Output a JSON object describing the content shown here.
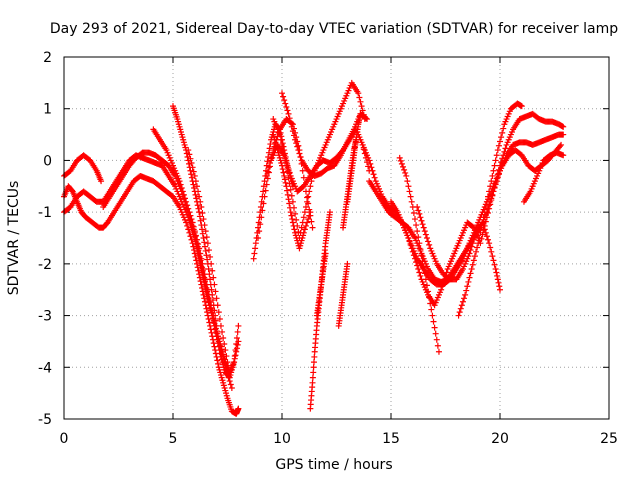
{
  "chart_data": {
    "type": "scatter",
    "title": "Day 293 of 2021, Sidereal Day-to-day VTEC variation (SDTVAR) for receiver lamp",
    "xlabel": "GPS time / hours",
    "ylabel": "SDTVAR / TECUs",
    "xlim": [
      0,
      25
    ],
    "ylim": [
      -5,
      2
    ],
    "xticks": [
      "0",
      "5",
      "10",
      "15",
      "20",
      "25"
    ],
    "yticks": [
      "-5",
      "-4",
      "-3",
      "-2",
      "-1",
      "0",
      "1",
      "2"
    ],
    "grid": true,
    "marker": "+",
    "color": "#ff0000",
    "series": [
      {
        "x": [
          0.0,
          0.3,
          0.6,
          0.9,
          1.2,
          1.5,
          1.7
        ],
        "y": [
          -0.3,
          -0.2,
          0.0,
          0.1,
          0.0,
          -0.2,
          -0.4
        ]
      },
      {
        "x": [
          0.0,
          0.2,
          0.4,
          0.6,
          0.8,
          1.0,
          1.3,
          1.6,
          1.8,
          2.0,
          2.3,
          2.6,
          2.9,
          3.2,
          3.5,
          3.8,
          4.1,
          4.4,
          4.7,
          5.0,
          5.3,
          5.6,
          5.9,
          6.1,
          6.3,
          6.5,
          6.7,
          6.9,
          7.1,
          7.3,
          7.5,
          7.7,
          7.9,
          8.0
        ],
        "y": [
          -0.7,
          -0.5,
          -0.6,
          -0.8,
          -1.0,
          -1.1,
          -1.2,
          -1.3,
          -1.3,
          -1.2,
          -1.0,
          -0.8,
          -0.6,
          -0.4,
          -0.3,
          -0.35,
          -0.4,
          -0.5,
          -0.6,
          -0.7,
          -0.9,
          -1.2,
          -1.6,
          -2.0,
          -2.4,
          -2.8,
          -3.2,
          -3.6,
          -4.0,
          -4.3,
          -4.6,
          -4.85,
          -4.9,
          -4.8
        ]
      },
      {
        "x": [
          0.0,
          0.3,
          0.6,
          0.9,
          1.2,
          1.5,
          1.8,
          2.1,
          2.4,
          2.7,
          3.0,
          3.3,
          3.6,
          3.9,
          4.2,
          4.5,
          4.8,
          5.1,
          5.4,
          5.7,
          6.0,
          6.2,
          6.4,
          6.6,
          6.8,
          7.0,
          7.2,
          7.4,
          7.6,
          7.8,
          8.0
        ],
        "y": [
          -1.0,
          -0.9,
          -0.7,
          -0.6,
          -0.7,
          -0.8,
          -0.8,
          -0.6,
          -0.4,
          -0.2,
          0.0,
          0.1,
          0.05,
          0.0,
          -0.05,
          -0.1,
          -0.3,
          -0.5,
          -0.8,
          -1.1,
          -1.5,
          -1.9,
          -2.3,
          -2.7,
          -3.0,
          -3.3,
          -3.6,
          -3.9,
          -4.1,
          -3.9,
          -3.5
        ]
      },
      {
        "x": [
          1.8,
          2.1,
          2.4,
          2.7,
          3.0,
          3.3,
          3.6,
          3.9,
          4.2,
          4.5,
          4.8,
          5.1,
          5.4,
          5.7,
          6.0,
          6.2,
          6.4,
          6.6,
          6.8,
          7.0,
          7.2,
          7.4,
          7.6,
          7.8,
          8.0
        ],
        "y": [
          -0.9,
          -0.7,
          -0.5,
          -0.3,
          -0.1,
          0.05,
          0.15,
          0.15,
          0.1,
          0.0,
          -0.1,
          -0.3,
          -0.6,
          -1.0,
          -1.4,
          -1.8,
          -2.2,
          -2.6,
          -3.0,
          -3.4,
          -3.8,
          -4.1,
          -4.2,
          -3.9,
          -3.2
        ]
      },
      {
        "x": [
          4.1,
          4.4,
          4.7,
          5.0,
          5.3,
          5.6,
          5.9,
          6.2,
          6.5,
          6.8,
          7.1,
          7.4,
          7.7
        ],
        "y": [
          0.6,
          0.4,
          0.2,
          -0.1,
          -0.4,
          -0.8,
          -1.2,
          -1.7,
          -2.3,
          -2.9,
          -3.5,
          -4.0,
          -4.4
        ]
      },
      {
        "x": [
          5.0,
          5.2,
          5.4,
          5.6,
          5.8,
          6.0,
          6.2,
          6.4,
          6.6,
          6.8,
          7.0
        ],
        "y": [
          1.05,
          0.8,
          0.5,
          0.2,
          -0.2,
          -0.6,
          -1.0,
          -1.5,
          -2.0,
          -2.6,
          -3.2
        ]
      },
      {
        "x": [
          5.7,
          6.0,
          6.3,
          6.6,
          6.9,
          7.2,
          7.5
        ],
        "y": [
          0.2,
          -0.3,
          -0.9,
          -1.6,
          -2.4,
          -3.2,
          -3.9
        ]
      },
      {
        "x": [
          8.7,
          8.9,
          9.1,
          9.3,
          9.5,
          9.7,
          9.9,
          10.1,
          10.3,
          10.5
        ],
        "y": [
          -1.9,
          -1.3,
          -0.7,
          -0.1,
          0.4,
          0.7,
          0.6,
          0.2,
          -0.2,
          -0.5
        ]
      },
      {
        "x": [
          8.9,
          9.2,
          9.5,
          9.8,
          10.1,
          10.4,
          10.7,
          11.0,
          11.3,
          11.6,
          11.9,
          12.2,
          12.5,
          12.8,
          13.1,
          13.4,
          13.7,
          14.0
        ],
        "y": [
          -1.5,
          -0.7,
          0.0,
          0.3,
          0.1,
          -0.3,
          -0.6,
          -0.5,
          -0.3,
          -0.1,
          0.0,
          -0.05,
          0.05,
          0.2,
          0.4,
          0.6,
          0.3,
          -0.2
        ]
      },
      {
        "x": [
          9.6,
          9.9,
          10.2,
          10.5,
          10.8,
          11.1,
          11.4,
          11.7,
          12.0,
          12.3,
          12.6,
          12.9,
          13.2,
          13.5,
          13.8
        ],
        "y": [
          0.8,
          0.5,
          -0.1,
          -0.8,
          -1.5,
          -0.9,
          -0.3,
          0.0,
          0.3,
          0.6,
          0.9,
          1.2,
          1.5,
          1.3,
          0.8
        ]
      },
      {
        "x": [
          9.6,
          9.8,
          10.0,
          10.2,
          10.4,
          10.6,
          10.8,
          11.0,
          11.3
        ],
        "y": [
          0.5,
          0.2,
          -0.1,
          -0.5,
          -1.0,
          -1.4,
          -1.7,
          -1.4,
          -1.0
        ]
      },
      {
        "x": [
          9.3,
          9.6,
          9.9,
          10.2,
          10.5,
          10.8,
          11.1,
          11.4
        ],
        "y": [
          -0.3,
          0.2,
          0.6,
          0.8,
          0.7,
          0.2,
          -0.6,
          -1.3
        ]
      },
      {
        "x": [
          10.0,
          10.3,
          10.6,
          10.9,
          11.2,
          11.5,
          11.8,
          12.1,
          12.4,
          12.7,
          13.0,
          13.3,
          13.6,
          13.9
        ],
        "y": [
          1.3,
          0.9,
          0.4,
          0.0,
          -0.2,
          -0.3,
          -0.25,
          -0.15,
          -0.1,
          0.1,
          0.35,
          0.6,
          0.9,
          0.8
        ]
      },
      {
        "x": [
          11.3,
          11.4,
          11.5,
          11.6,
          11.7,
          11.8,
          11.9,
          12.0,
          12.1,
          12.2
        ],
        "y": [
          -4.8,
          -4.3,
          -3.7,
          -3.2,
          -2.8,
          -2.4,
          -2.0,
          -1.6,
          -1.3,
          -1.0
        ]
      },
      {
        "x": [
          11.6,
          11.7,
          11.8,
          11.9,
          12.0
        ],
        "y": [
          -3.0,
          -2.7,
          -2.4,
          -2.1,
          -1.8
        ]
      },
      {
        "x": [
          12.6,
          12.7,
          12.8,
          12.9,
          13.0
        ],
        "y": [
          -3.2,
          -2.9,
          -2.6,
          -2.3,
          -2.0
        ]
      },
      {
        "x": [
          12.8,
          12.9,
          13.0,
          13.1,
          13.2,
          13.3,
          13.4
        ],
        "y": [
          -1.3,
          -1.0,
          -0.7,
          -0.4,
          -0.1,
          0.2,
          0.4
        ]
      },
      {
        "x": [
          13.0,
          13.1,
          13.2,
          13.3,
          13.4,
          13.5,
          13.6
        ],
        "y": [
          -0.8,
          -0.5,
          -0.2,
          0.1,
          0.4,
          0.7,
          0.9
        ]
      },
      {
        "x": [
          13.7,
          14.0,
          14.3,
          14.6,
          14.9,
          15.2,
          15.5,
          15.8,
          16.1,
          16.4,
          16.7,
          17.0,
          17.3,
          17.6,
          17.9,
          18.2,
          18.5,
          18.8,
          19.1,
          19.4,
          19.7,
          20.0,
          20.3,
          20.6,
          20.9,
          21.2,
          21.5,
          21.8,
          22.1,
          22.4,
          22.7,
          22.9
        ],
        "y": [
          0.3,
          0.0,
          -0.4,
          -0.7,
          -0.9,
          -1.0,
          -1.2,
          -1.5,
          -1.9,
          -2.3,
          -2.6,
          -2.8,
          -2.5,
          -2.1,
          -1.8,
          -1.5,
          -1.2,
          -1.3,
          -1.6,
          -1.1,
          -0.6,
          -0.1,
          0.3,
          0.6,
          0.8,
          0.85,
          0.9,
          0.8,
          0.75,
          0.75,
          0.7,
          0.65
        ]
      },
      {
        "x": [
          14.0,
          14.3,
          14.6,
          14.9,
          15.2,
          15.5,
          15.8,
          16.1,
          16.4,
          16.7,
          17.0,
          17.3,
          17.6,
          17.9,
          18.2,
          18.5,
          18.8,
          19.1,
          19.4,
          19.7,
          20.0,
          20.3,
          20.6,
          20.9,
          21.2,
          21.5,
          21.8,
          22.1,
          22.4,
          22.7,
          22.9
        ],
        "y": [
          -0.4,
          -0.6,
          -0.8,
          -1.0,
          -1.1,
          -1.2,
          -1.3,
          -1.5,
          -1.8,
          -2.1,
          -2.3,
          -2.35,
          -2.3,
          -2.1,
          -1.9,
          -1.7,
          -1.5,
          -1.3,
          -1.0,
          -0.6,
          -0.2,
          0.1,
          0.3,
          0.35,
          0.35,
          0.3,
          0.35,
          0.4,
          0.45,
          0.5,
          0.5
        ]
      },
      {
        "x": [
          15.0,
          15.3,
          15.6,
          15.9,
          16.2,
          16.5,
          16.8,
          17.1,
          17.4,
          17.7,
          18.0,
          18.3,
          18.6,
          18.9,
          19.2,
          19.5,
          19.8,
          20.1,
          20.4,
          20.7,
          21.0,
          21.3,
          21.6,
          21.9,
          22.2,
          22.5,
          22.8
        ],
        "y": [
          -0.8,
          -1.0,
          -1.3,
          -1.6,
          -1.9,
          -2.1,
          -2.3,
          -2.4,
          -2.4,
          -2.3,
          -2.1,
          -1.9,
          -1.6,
          -1.3,
          -1.0,
          -0.7,
          -0.4,
          -0.1,
          0.1,
          0.2,
          0.1,
          -0.1,
          -0.2,
          -0.1,
          0.0,
          0.15,
          0.3
        ]
      },
      {
        "x": [
          15.4,
          15.7,
          16.0,
          16.3,
          16.6,
          16.9,
          17.2
        ],
        "y": [
          0.05,
          -0.3,
          -0.9,
          -1.6,
          -2.3,
          -3.0,
          -3.7
        ]
      },
      {
        "x": [
          16.2,
          16.5,
          16.8,
          17.1,
          17.4,
          17.7,
          18.0,
          18.3,
          18.6,
          18.9,
          19.2,
          19.5,
          19.8,
          20.0
        ],
        "y": [
          -0.9,
          -1.3,
          -1.7,
          -2.0,
          -2.2,
          -2.3,
          -2.3,
          -2.1,
          -1.8,
          -1.4,
          -1.2,
          -1.6,
          -2.1,
          -2.5
        ]
      },
      {
        "x": [
          18.1,
          18.4,
          18.7,
          19.0,
          19.3,
          19.6,
          19.9,
          20.2,
          20.5,
          20.8,
          21.0
        ],
        "y": [
          -3.0,
          -2.6,
          -2.1,
          -1.6,
          -1.0,
          -0.4,
          0.2,
          0.7,
          1.0,
          1.1,
          1.05
        ]
      },
      {
        "x": [
          21.1,
          21.4,
          21.7,
          22.0,
          22.3,
          22.6,
          22.9
        ],
        "y": [
          -0.8,
          -0.6,
          -0.3,
          0.0,
          0.1,
          0.15,
          0.1
        ]
      }
    ]
  }
}
